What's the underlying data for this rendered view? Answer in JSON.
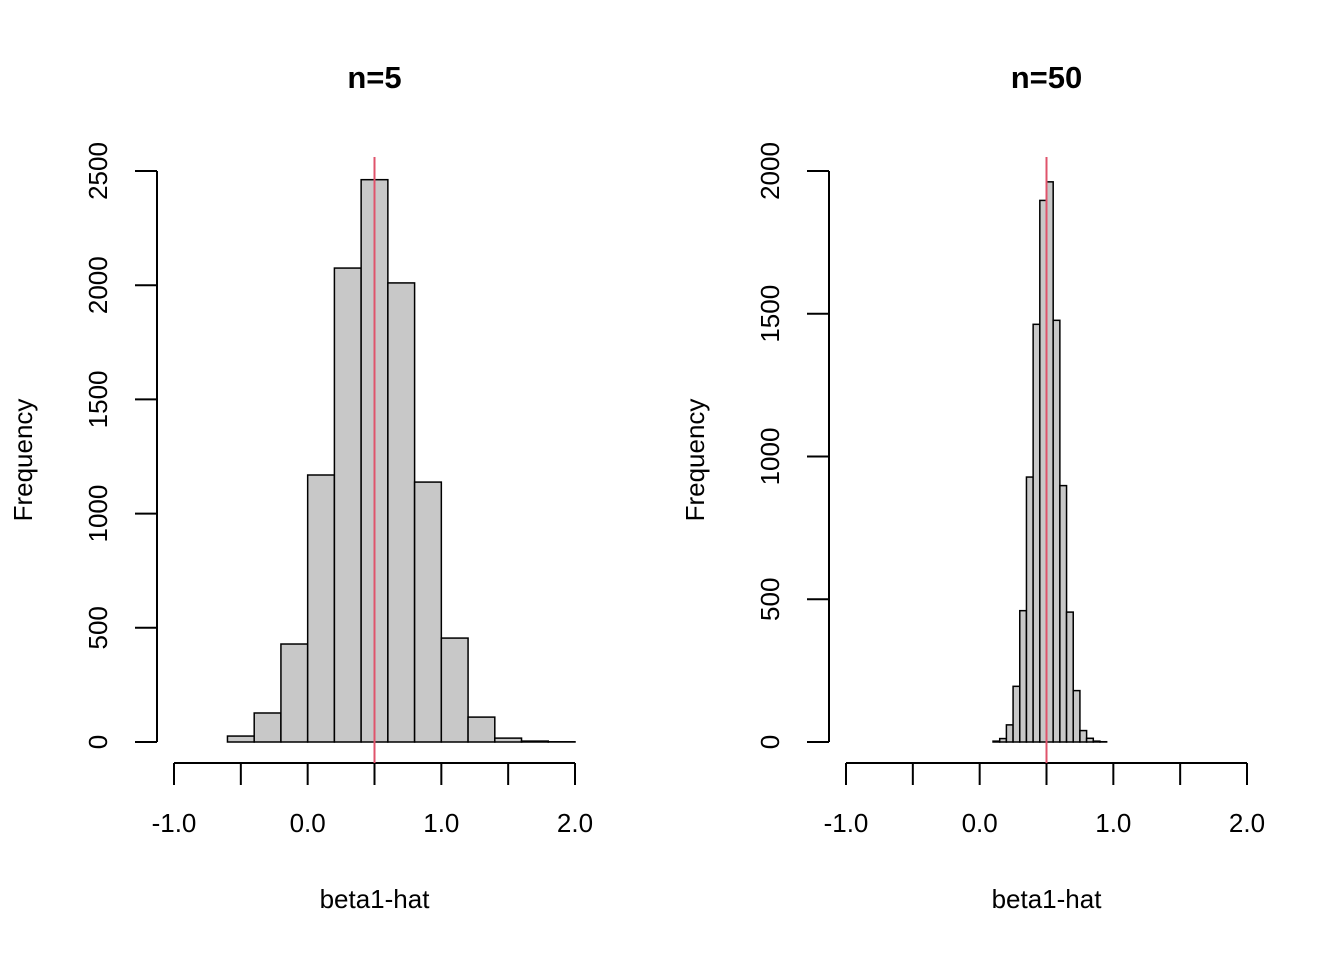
{
  "chart_data": [
    {
      "type": "histogram",
      "title": "n=5",
      "x_label": "beta1-hat",
      "y_label": "Frequency",
      "bins": [
        -0.6,
        -0.4,
        -0.2,
        0.0,
        0.2,
        0.4,
        0.6,
        0.8,
        1.0,
        1.2,
        1.4,
        1.6,
        1.8,
        2.0
      ],
      "values": [
        26,
        127,
        429,
        1169,
        2075,
        2462,
        2010,
        1138,
        455,
        109,
        17,
        4,
        1
      ],
      "color": "#c8c8c8",
      "xlim": [
        -1,
        2
      ],
      "ylim": [
        0,
        2500
      ],
      "xticks": [
        {
          "value": -1,
          "label": "-1.0"
        },
        {
          "value": 0,
          "label": "0.0"
        },
        {
          "value": 1,
          "label": "1.0"
        },
        {
          "value": 2,
          "label": "2.0"
        }
      ],
      "xminorticks": [
        -0.5,
        0.5,
        1.5
      ],
      "yticks": [
        0,
        500,
        1000,
        1500,
        2000,
        2500
      ],
      "vline": 0.5,
      "vline_color": "#DF536B"
    },
    {
      "type": "histogram",
      "title": "n=50",
      "x_label": "beta1-hat",
      "y_label": "Frequency",
      "bins": [
        0.1,
        0.15,
        0.2,
        0.25,
        0.3,
        0.35,
        0.4,
        0.45,
        0.5,
        0.55,
        0.6,
        0.65,
        0.7,
        0.75,
        0.8,
        0.85,
        0.9,
        0.95
      ],
      "values": [
        3,
        12,
        60,
        195,
        460,
        928,
        1463,
        1897,
        1962,
        1477,
        898,
        455,
        180,
        40,
        13,
        3,
        1
      ],
      "color": "#c8c8c8",
      "xlim": [
        -1,
        2
      ],
      "ylim": [
        0,
        2000
      ],
      "xticks": [
        {
          "value": -1,
          "label": "-1.0"
        },
        {
          "value": 0,
          "label": "0.0"
        },
        {
          "value": 1,
          "label": "1.0"
        },
        {
          "value": 2,
          "label": "2.0"
        }
      ],
      "xminorticks": [
        -0.5,
        0.5,
        1.5
      ],
      "yticks": [
        0,
        500,
        1000,
        1500,
        2000
      ],
      "vline": 0.5,
      "vline_color": "#DF536B"
    }
  ]
}
